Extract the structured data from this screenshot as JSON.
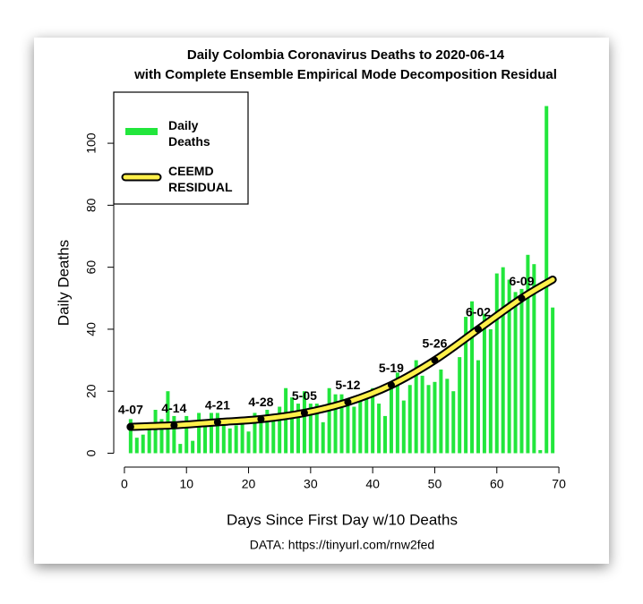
{
  "chart_data": {
    "type": "bar",
    "title": "Daily Colombia Coronavirus Deaths to 2020-06-14",
    "subtitle": "with Complete Ensemble Empirical Mode Decomposition Residual",
    "x_label": "Days Since First Day w/10 Deaths",
    "y_label": "Daily Deaths",
    "caption": "DATA: https://tinyurl.com/rnw2fed",
    "xlim": [
      -1.72,
      71.72
    ],
    "ylim": [
      -4.48,
      116.48
    ],
    "xticks": [
      0,
      10,
      20,
      30,
      40,
      50,
      60,
      70
    ],
    "yticks": [
      0,
      20,
      40,
      60,
      80,
      100
    ],
    "legend": "top-left",
    "series": [
      {
        "name": "Daily Deaths",
        "color": "#22e63c",
        "x": [
          1,
          2,
          3,
          4,
          5,
          6,
          7,
          8,
          9,
          10,
          11,
          12,
          13,
          14,
          15,
          16,
          17,
          18,
          19,
          20,
          21,
          22,
          23,
          24,
          25,
          26,
          27,
          28,
          29,
          30,
          31,
          32,
          33,
          34,
          35,
          36,
          37,
          38,
          39,
          40,
          41,
          42,
          43,
          44,
          45,
          46,
          47,
          48,
          49,
          50,
          51,
          52,
          53,
          54,
          55,
          56,
          57,
          58,
          59,
          60,
          61,
          62,
          63,
          64,
          65,
          66,
          67,
          68,
          69
        ],
        "values": [
          11,
          5,
          6,
          8,
          14,
          11,
          20,
          12,
          3,
          12,
          4,
          13,
          9,
          13,
          13,
          11,
          8,
          9,
          10,
          7,
          13,
          11,
          14,
          12,
          15,
          21,
          18,
          16,
          20,
          16,
          16,
          10,
          21,
          19,
          19,
          17,
          15,
          18,
          18,
          21,
          16,
          12,
          22,
          26,
          17,
          22,
          30,
          25,
          22,
          23,
          27,
          24,
          20,
          31,
          44,
          49,
          30,
          45,
          40,
          58,
          60,
          56,
          52,
          53,
          64,
          61,
          1,
          112,
          47
        ]
      },
      {
        "name": "CEEMD RESIDUAL",
        "type": "line",
        "color": "#fff04a",
        "outline": "#000000",
        "x": [
          1,
          8,
          15,
          22,
          29,
          36,
          43,
          50,
          57,
          64,
          69
        ],
        "values": [
          8.5,
          9,
          10,
          11,
          13,
          16.5,
          22,
          30,
          40,
          50,
          56
        ],
        "point_labels": [
          "4-07",
          "4-14",
          "4-21",
          "4-28",
          "5-05",
          "5-12",
          "5-19",
          "5-26",
          "6-02",
          "6-09",
          null
        ]
      }
    ]
  }
}
